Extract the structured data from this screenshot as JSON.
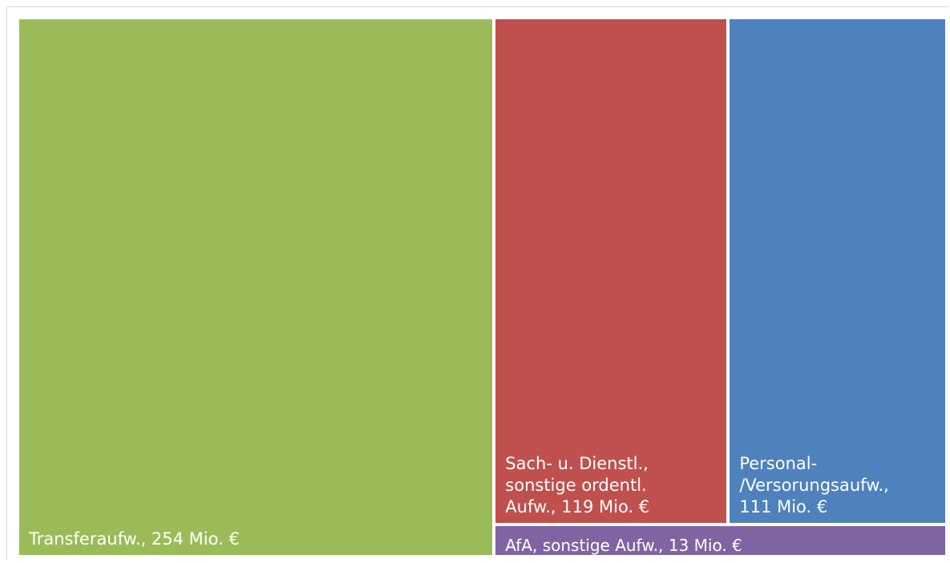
{
  "chart_data": {
    "type": "treemap",
    "unit": "Mio. €",
    "items": [
      {
        "key": "transfer",
        "label": "Transferaufw., 254 Mio. €",
        "value": 254,
        "color": "#9bbb59"
      },
      {
        "key": "sach",
        "label": "Sach- u. Dienstl.,\nsonstige ordentl.\nAufw., 119 Mio. €",
        "value": 119,
        "color": "#c0504d"
      },
      {
        "key": "personal",
        "label": "Personal-\n/Versorungsaufw.,\n111 Mio. €",
        "value": 111,
        "color": "#4f81bd"
      },
      {
        "key": "afa",
        "label": "AfA, sonstige Aufw., 13 Mio. €",
        "value": 13,
        "color": "#8064a2"
      }
    ]
  }
}
